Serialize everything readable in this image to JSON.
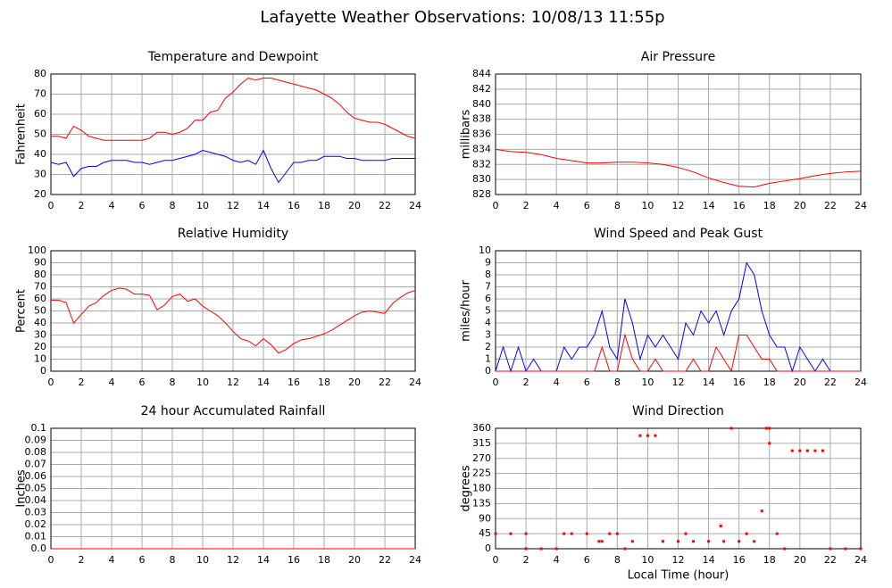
{
  "title": "Lafayette Weather Observations: 10/08/13 11:55p",
  "chart_data": [
    {
      "type": "line",
      "title": "Temperature and Dewpoint",
      "ylabel": "Fahrenheit",
      "x": [
        0,
        0.5,
        1,
        1.5,
        2,
        2.5,
        3,
        3.5,
        4,
        4.5,
        5,
        5.5,
        6,
        6.5,
        7,
        7.5,
        8,
        8.5,
        9,
        9.5,
        10,
        10.5,
        11,
        11.5,
        12,
        12.5,
        13,
        13.5,
        14,
        14.5,
        15,
        15.5,
        16,
        16.5,
        17,
        17.5,
        18,
        18.5,
        19,
        19.5,
        20,
        20.5,
        21,
        21.5,
        22,
        22.5,
        23,
        23.5,
        24
      ],
      "series": [
        {
          "color": "#ff0000",
          "values": [
            49,
            49,
            48,
            54,
            52,
            49,
            48,
            47,
            47,
            47,
            47,
            47,
            47,
            48,
            51,
            51,
            50,
            51,
            53,
            57,
            57,
            61,
            62,
            68,
            71,
            75,
            78,
            77,
            78,
            78,
            77,
            76,
            75,
            74,
            73,
            72,
            70,
            68,
            65,
            61,
            58,
            57,
            56,
            56,
            55,
            53,
            51,
            49,
            48
          ]
        },
        {
          "color": "#0000ff",
          "values": [
            36,
            35,
            36,
            29,
            33,
            34,
            34,
            36,
            37,
            37,
            37,
            36,
            36,
            35,
            36,
            37,
            37,
            38,
            39,
            40,
            42,
            41,
            40,
            39,
            37,
            36,
            37,
            35,
            42,
            33,
            26,
            31,
            36,
            36,
            37,
            37,
            39,
            39,
            39,
            38,
            38,
            37,
            37,
            37,
            37,
            38,
            38,
            38,
            38
          ]
        }
      ],
      "xlim": [
        0,
        24
      ],
      "xticks": [
        0,
        2,
        4,
        6,
        8,
        10,
        12,
        14,
        16,
        18,
        20,
        22,
        24
      ],
      "ylim": [
        20,
        80
      ],
      "yticks": [
        20,
        30,
        40,
        50,
        60,
        70,
        80
      ],
      "grid": true
    },
    {
      "type": "line",
      "title": "Air Pressure",
      "ylabel": "millibars",
      "x": [
        0,
        1,
        2,
        3,
        4,
        5,
        6,
        7,
        8,
        9,
        10,
        11,
        12,
        13,
        14,
        15,
        16,
        17,
        18,
        19,
        20,
        21,
        22,
        23,
        24
      ],
      "series": [
        {
          "color": "#ff0000",
          "values": [
            834,
            833.7,
            833.6,
            833.3,
            832.8,
            832.5,
            832.2,
            832.2,
            832.3,
            832.3,
            832.2,
            832,
            831.6,
            831,
            830.2,
            829.6,
            829.1,
            829,
            829.5,
            829.8,
            830.1,
            830.5,
            830.8,
            831,
            831.1
          ]
        }
      ],
      "xlim": [
        0,
        24
      ],
      "xticks": [
        0,
        2,
        4,
        6,
        8,
        10,
        12,
        14,
        16,
        18,
        20,
        22,
        24
      ],
      "ylim": [
        828,
        844
      ],
      "yticks": [
        828,
        830,
        832,
        834,
        836,
        838,
        840,
        842,
        844
      ],
      "grid": true
    },
    {
      "type": "line",
      "title": "Relative Humidity",
      "ylabel": "Percent",
      "x": [
        0,
        0.5,
        1,
        1.5,
        2,
        2.5,
        3,
        3.5,
        4,
        4.5,
        5,
        5.5,
        6,
        6.5,
        7,
        7.5,
        8,
        8.5,
        9,
        9.5,
        10,
        10.5,
        11,
        11.5,
        12,
        12.5,
        13,
        13.5,
        14,
        14.5,
        15,
        15.5,
        16,
        16.5,
        17,
        17.5,
        18,
        18.5,
        19,
        19.5,
        20,
        20.5,
        21,
        21.5,
        22,
        22.5,
        23,
        23.5,
        24
      ],
      "series": [
        {
          "color": "#ff0000",
          "values": [
            59,
            59,
            57,
            40,
            47,
            54,
            57,
            63,
            67,
            69,
            68,
            64,
            64,
            63,
            51,
            55,
            62,
            64,
            58,
            60,
            54,
            50,
            46,
            40,
            33,
            27,
            25,
            21,
            27,
            22,
            15,
            18,
            23,
            26,
            27,
            29,
            31,
            34,
            38,
            42,
            46,
            49,
            50,
            49,
            48,
            56,
            61,
            65,
            67
          ]
        }
      ],
      "xlim": [
        0,
        24
      ],
      "xticks": [
        0,
        2,
        4,
        6,
        8,
        10,
        12,
        14,
        16,
        18,
        20,
        22,
        24
      ],
      "ylim": [
        0,
        100
      ],
      "yticks": [
        0,
        10,
        20,
        30,
        40,
        50,
        60,
        70,
        80,
        90,
        100
      ],
      "grid": true
    },
    {
      "type": "line",
      "title": "Wind Speed and Peak Gust",
      "ylabel": "miles/hour",
      "x": [
        0,
        0.5,
        1,
        1.5,
        2,
        2.5,
        3,
        3.5,
        4,
        4.5,
        5,
        5.5,
        6,
        6.5,
        7,
        7.5,
        8,
        8.5,
        9,
        9.5,
        10,
        10.5,
        11,
        11.5,
        12,
        12.5,
        13,
        13.5,
        14,
        14.5,
        15,
        15.5,
        16,
        16.5,
        17,
        17.5,
        18,
        18.5,
        19,
        19.5,
        20,
        20.5,
        21,
        21.5,
        22,
        22.5,
        23,
        23.5,
        24
      ],
      "series": [
        {
          "color": "#0000ff",
          "values": [
            0,
            2,
            0,
            2,
            0,
            1,
            0,
            0,
            0,
            2,
            1,
            2,
            2,
            3,
            5,
            2,
            1,
            6,
            4,
            1,
            3,
            2,
            3,
            2,
            1,
            4,
            3,
            5,
            4,
            5,
            3,
            5,
            6,
            9,
            8,
            5,
            3,
            2,
            2,
            0,
            2,
            1,
            0,
            1,
            0,
            0,
            0,
            0,
            0
          ]
        },
        {
          "color": "#ff0000",
          "values": [
            0,
            0,
            0,
            0,
            0,
            0,
            0,
            0,
            0,
            0,
            0,
            0,
            0,
            0,
            2,
            0,
            0,
            3,
            1,
            0,
            0,
            1,
            0,
            0,
            0,
            0,
            1,
            0,
            0,
            2,
            1,
            0,
            3,
            3,
            2,
            1,
            1,
            0,
            0,
            0,
            0,
            0,
            0,
            0,
            0,
            0,
            0,
            0,
            0
          ]
        }
      ],
      "xlim": [
        0,
        24
      ],
      "xticks": [
        0,
        2,
        4,
        6,
        8,
        10,
        12,
        14,
        16,
        18,
        20,
        22,
        24
      ],
      "ylim": [
        0,
        10
      ],
      "yticks": [
        0,
        1,
        2,
        3,
        4,
        5,
        6,
        7,
        8,
        9,
        10
      ],
      "grid": true
    },
    {
      "type": "line",
      "title": "24 hour Accumulated Rainfall",
      "ylabel": "Inches",
      "x": [
        0,
        24
      ],
      "series": [
        {
          "color": "#ff0000",
          "values": [
            0,
            0
          ]
        }
      ],
      "xlim": [
        0,
        24
      ],
      "xticks": [
        0,
        2,
        4,
        6,
        8,
        10,
        12,
        14,
        16,
        18,
        20,
        22,
        24
      ],
      "ylim": [
        0,
        0.1
      ],
      "yticks": [
        {
          "value": 0,
          "label": "0.0"
        },
        0.01,
        0.02,
        0.03,
        0.04,
        0.05,
        0.06,
        0.07,
        0.08,
        0.09,
        0.1
      ],
      "grid": true
    },
    {
      "type": "scatter",
      "title": "Wind Direction",
      "ylabel": "degrees",
      "xlabel": "Local Time (hour)",
      "x": [
        0,
        1,
        2,
        2,
        3,
        4,
        4.5,
        5,
        6,
        6.8,
        7,
        7.5,
        8,
        8.5,
        9,
        9.5,
        10,
        10.5,
        11,
        12,
        12.5,
        13,
        14,
        14.8,
        15,
        15.5,
        16,
        16.5,
        17,
        17.5,
        17.8,
        18,
        18,
        18.5,
        19,
        19.5,
        20,
        20.5,
        21,
        21.5,
        22,
        23,
        24
      ],
      "y": [
        45,
        45,
        45,
        0,
        0,
        0,
        45,
        45,
        45,
        22,
        22,
        45,
        45,
        0,
        22,
        338,
        338,
        338,
        22,
        22,
        45,
        22,
        22,
        68,
        22,
        360,
        22,
        45,
        22,
        113,
        360,
        360,
        315,
        45,
        0,
        293,
        293,
        293,
        293,
        293,
        0,
        0,
        0
      ],
      "color": "#ff0000",
      "xlim": [
        0,
        24
      ],
      "xticks": [
        0,
        2,
        4,
        6,
        8,
        10,
        12,
        14,
        16,
        18,
        20,
        22,
        24
      ],
      "ylim": [
        0,
        360
      ],
      "yticks": [
        0,
        45,
        90,
        135,
        180,
        225,
        270,
        315,
        360
      ],
      "grid": true
    }
  ]
}
